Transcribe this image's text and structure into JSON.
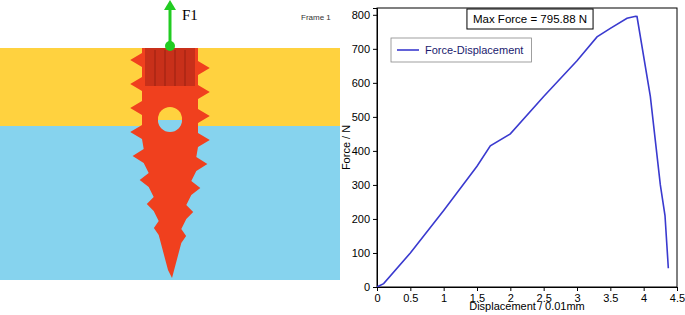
{
  "chart_data": {
    "type": "line",
    "x_label": "Displacement / 0.01mm",
    "y_label": "Force / N",
    "annotations": [
      "Max Force = 795.88 N"
    ],
    "x": [
      0,
      0.1,
      0.5,
      1,
      1.5,
      1.7,
      2,
      2.5,
      3,
      3.3,
      3.5,
      3.75,
      3.88,
      3.9,
      4.1,
      4.25,
      4.32,
      4.37
    ],
    "series": [
      {
        "name": "Force-Displacement",
        "color": "#3a3acf",
        "values": [
          0,
          10,
          100,
          225,
          355,
          415,
          450,
          560,
          665,
          735,
          760,
          790,
          795.88,
          795,
          560,
          300,
          210,
          55
        ]
      }
    ],
    "xlim": [
      0,
      4.5
    ],
    "xticks": [
      0,
      0.5,
      1,
      1.5,
      2,
      2.5,
      3,
      3.5,
      4,
      4.5
    ],
    "ylim": [
      0,
      820
    ],
    "yticks": [
      0,
      100,
      200,
      300,
      400,
      500,
      600,
      700,
      800
    ],
    "grid": false,
    "legend": "upper-left"
  },
  "diagram": {
    "force_label": "F1",
    "frame_label": "Frame 1"
  }
}
